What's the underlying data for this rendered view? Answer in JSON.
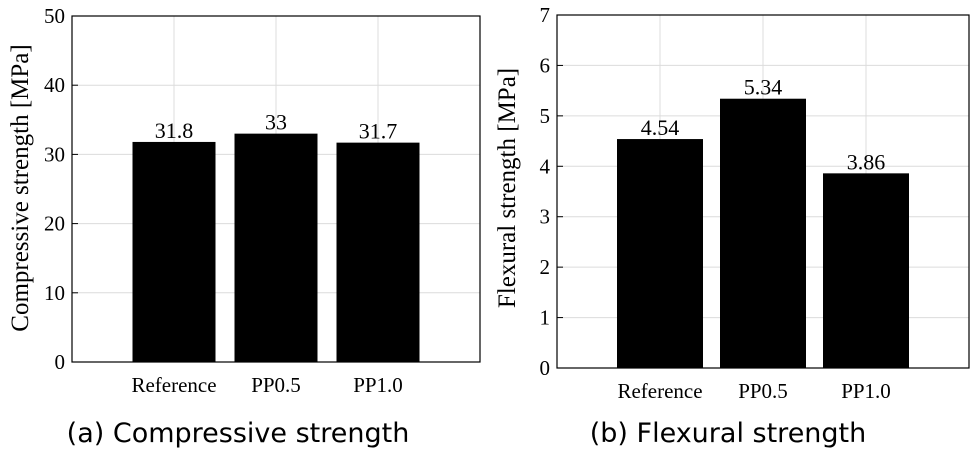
{
  "chart_data": [
    {
      "type": "bar",
      "caption": "(a) Compressive strength",
      "ylabel": "Compressive strength [MPa]",
      "categories": [
        "Reference",
        "PP0.5",
        "PP1.0"
      ],
      "values": [
        31.8,
        33,
        31.7
      ],
      "value_labels": [
        "31.8",
        "33",
        "31.7"
      ],
      "ylim": [
        0,
        50
      ],
      "yticks": [
        "0",
        "10",
        "20",
        "30",
        "40",
        "50"
      ],
      "grid": true,
      "bar_color": "#000000"
    },
    {
      "type": "bar",
      "caption": "(b) Flexural strength",
      "ylabel": "Flexural strength [MPa]",
      "categories": [
        "Reference",
        "PP0.5",
        "PP1.0"
      ],
      "values": [
        4.54,
        5.34,
        3.86
      ],
      "value_labels": [
        "4.54",
        "5.34",
        "3.86"
      ],
      "ylim": [
        0,
        7
      ],
      "yticks": [
        "0",
        "1",
        "2",
        "3",
        "4",
        "5",
        "6",
        "7"
      ],
      "grid": true,
      "bar_color": "#000000"
    }
  ]
}
